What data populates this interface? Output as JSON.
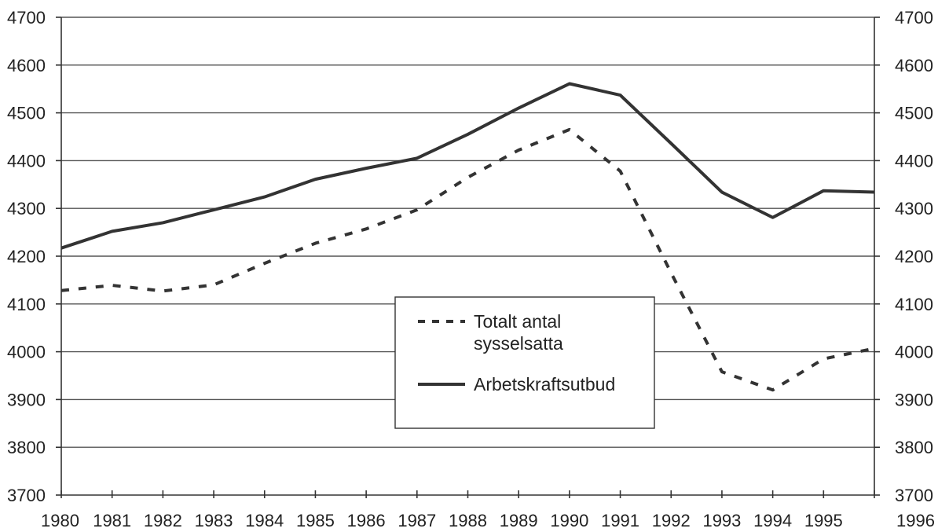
{
  "chart_data": {
    "type": "line",
    "title": "",
    "xlabel": "",
    "ylabel": "",
    "x": [
      "1980",
      "1981",
      "1982",
      "1983",
      "1984",
      "1985",
      "1986",
      "1987",
      "1988",
      "1989",
      "1990",
      "1991",
      "1992",
      "1993",
      "1994",
      "1995",
      "1996"
    ],
    "ylim": [
      3700,
      4700
    ],
    "y_ticks": [
      "3700",
      "3800",
      "3900",
      "4000",
      "4100",
      "4200",
      "4300",
      "4400",
      "4500",
      "4600",
      "4700"
    ],
    "y_ticks_right": [
      "3700",
      "3800",
      "3900",
      "4000",
      "4100",
      "4200",
      "4300",
      "4400",
      "4500",
      "4600",
      "4700"
    ],
    "grid": true,
    "legend_position": "center-right",
    "series": [
      {
        "name": "Totalt antal sysselsatta",
        "style": "dashed",
        "color": "#333333",
        "values": [
          4128,
          4139,
          4127,
          4140,
          4185,
          4227,
          4257,
          4297,
          4365,
          4422,
          4465,
          4378,
          4165,
          3958,
          3920,
          3985,
          4007
        ]
      },
      {
        "name": "Arbetskraftsutbud",
        "style": "solid",
        "color": "#333333",
        "values": [
          4217,
          4252,
          4270,
          4297,
          4324,
          4361,
          4384,
          4405,
          4455,
          4510,
          4561,
          4537,
          4436,
          4334,
          4281,
          4337,
          4334
        ]
      }
    ]
  }
}
